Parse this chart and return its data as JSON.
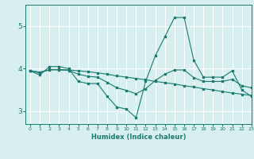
{
  "title": "",
  "xlabel": "Humidex (Indice chaleur)",
  "ylabel": "",
  "xlim": [
    -0.5,
    23
  ],
  "ylim": [
    2.7,
    5.5
  ],
  "yticks": [
    3,
    4,
    5
  ],
  "xticks": [
    0,
    1,
    2,
    3,
    4,
    5,
    6,
    7,
    8,
    9,
    10,
    11,
    12,
    13,
    14,
    15,
    16,
    17,
    18,
    19,
    20,
    21,
    22,
    23
  ],
  "background_color": "#d8eff0",
  "grid_color": "#ffffff",
  "line_color": "#1a7a6e",
  "series1_x": [
    0,
    1,
    2,
    3,
    4,
    5,
    6,
    7,
    8,
    9,
    10,
    11,
    12,
    13,
    14,
    15,
    16,
    17,
    18,
    19,
    20,
    21,
    22,
    23
  ],
  "series1_y": [
    3.95,
    3.85,
    4.05,
    4.05,
    4.0,
    3.7,
    3.65,
    3.65,
    3.35,
    3.1,
    3.05,
    2.85,
    3.7,
    4.3,
    4.75,
    5.2,
    5.2,
    4.2,
    3.8,
    3.8,
    3.8,
    3.95,
    3.5,
    3.35
  ],
  "series2_x": [
    0,
    1,
    2,
    3,
    4,
    5,
    6,
    7,
    8,
    9,
    10,
    11,
    12,
    13,
    14,
    15,
    16,
    17,
    18,
    19,
    20,
    21,
    22,
    23
  ],
  "series2_y": [
    3.95,
    3.9,
    3.98,
    3.98,
    3.97,
    3.95,
    3.93,
    3.9,
    3.87,
    3.83,
    3.8,
    3.77,
    3.74,
    3.7,
    3.67,
    3.64,
    3.6,
    3.57,
    3.53,
    3.5,
    3.46,
    3.43,
    3.4,
    3.37
  ],
  "series3_x": [
    0,
    1,
    2,
    3,
    4,
    5,
    6,
    7,
    8,
    9,
    10,
    11,
    12,
    13,
    14,
    15,
    16,
    17,
    18,
    19,
    20,
    21,
    22,
    23
  ],
  "series3_y": [
    3.95,
    3.92,
    3.97,
    3.97,
    3.96,
    3.87,
    3.82,
    3.8,
    3.68,
    3.55,
    3.49,
    3.41,
    3.53,
    3.72,
    3.87,
    3.97,
    3.97,
    3.79,
    3.7,
    3.7,
    3.7,
    3.75,
    3.6,
    3.55
  ]
}
